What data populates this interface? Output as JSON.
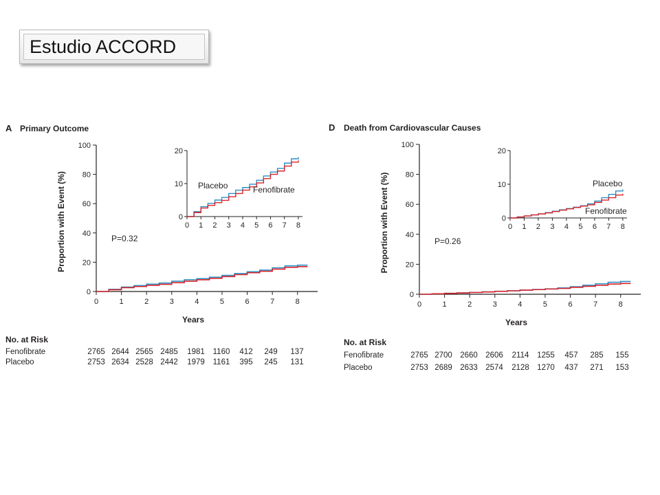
{
  "slide_title": "Estudio ACCORD",
  "colors": {
    "placebo": "#2f8fc4",
    "fenofibrate": "#d8242a",
    "axis": "#231f20"
  },
  "risk_header": "No. at Risk",
  "chart_data": [
    {
      "type": "line",
      "panel_letter": "A",
      "title": "Primary Outcome",
      "xlabel": "Years",
      "ylabel": "Proportion with Event (%)",
      "xlim": [
        0,
        8.8
      ],
      "ylim": [
        0,
        100
      ],
      "xticks": [
        0,
        1,
        2,
        3,
        4,
        5,
        6,
        7,
        8
      ],
      "yticks": [
        0,
        20,
        40,
        60,
        80,
        100
      ],
      "p_value": "P=0.32",
      "series": [
        {
          "name": "Placebo",
          "color": "#2f8fc4",
          "x": [
            0,
            0.5,
            1,
            1.5,
            2,
            2.5,
            3,
            3.5,
            4,
            4.5,
            5,
            5.5,
            6,
            6.5,
            7,
            7.5,
            8,
            8.4
          ],
          "y": [
            0,
            1.5,
            3,
            4,
            5,
            5.8,
            7,
            8,
            8.8,
            9.8,
            11,
            12.3,
            13.5,
            14.6,
            16.2,
            17.5,
            18,
            18
          ]
        },
        {
          "name": "Fenofibrate",
          "color": "#d8242a",
          "x": [
            0,
            0.5,
            1,
            1.5,
            2,
            2.5,
            3,
            3.5,
            4,
            4.5,
            5,
            5.5,
            6,
            6.5,
            7,
            7.5,
            8,
            8.4
          ],
          "y": [
            0,
            1.2,
            2.6,
            3.4,
            4.2,
            4.9,
            6,
            7,
            8,
            9,
            10.2,
            11.5,
            12.8,
            13.8,
            15.3,
            16.5,
            17,
            17
          ]
        }
      ],
      "inset": {
        "xlim": [
          0,
          8.3
        ],
        "ylim": [
          0,
          20
        ],
        "xticks": [
          0,
          1,
          2,
          3,
          4,
          5,
          6,
          7,
          8
        ],
        "yticks": [
          0,
          10,
          20
        ],
        "labels": [
          "Placebo",
          "Fenofibrate"
        ]
      },
      "risk_table": {
        "rows": [
          {
            "label": "Fenofibrate",
            "values": [
              "2765",
              "2644",
              "2565",
              "2485",
              "1981",
              "1160",
              "412",
              "249",
              "137"
            ]
          },
          {
            "label": "Placebo",
            "values": [
              "2753",
              "2634",
              "2528",
              "2442",
              "1979",
              "1161",
              "395",
              "245",
              "131"
            ]
          }
        ]
      }
    },
    {
      "type": "line",
      "panel_letter": "D",
      "title": "Death from Cardiovascular Causes",
      "xlabel": "Years",
      "ylabel": "Proportion with Event (%)",
      "xlim": [
        0,
        8.8
      ],
      "ylim": [
        0,
        100
      ],
      "xticks": [
        0,
        1,
        2,
        3,
        4,
        5,
        6,
        7,
        8
      ],
      "yticks": [
        0,
        20,
        40,
        60,
        80,
        100
      ],
      "p_value": "P=0.26",
      "series": [
        {
          "name": "Placebo",
          "color": "#2f8fc4",
          "x": [
            0,
            0.5,
            1,
            1.5,
            2,
            2.5,
            3,
            3.5,
            4,
            4.5,
            5,
            5.5,
            6,
            6.5,
            7,
            7.5,
            8,
            8.4
          ],
          "y": [
            0,
            0.3,
            0.6,
            0.9,
            1.2,
            1.6,
            2,
            2.4,
            2.8,
            3.2,
            3.6,
            4.2,
            5,
            6,
            7,
            8,
            8.5,
            8.5
          ]
        },
        {
          "name": "Fenofibrate",
          "color": "#d8242a",
          "x": [
            0,
            0.5,
            1,
            1.5,
            2,
            2.5,
            3,
            3.5,
            4,
            4.5,
            5,
            5.5,
            6,
            6.5,
            7,
            7.5,
            8,
            8.4
          ],
          "y": [
            0,
            0.3,
            0.6,
            0.9,
            1.2,
            1.5,
            1.9,
            2.3,
            2.7,
            3.1,
            3.5,
            3.9,
            4.6,
            5.3,
            6,
            6.8,
            7.2,
            7.2
          ]
        }
      ],
      "inset": {
        "xlim": [
          0,
          8.3
        ],
        "ylim": [
          0,
          20
        ],
        "xticks": [
          0,
          1,
          2,
          3,
          4,
          5,
          6,
          7,
          8
        ],
        "yticks": [
          0,
          10,
          20
        ],
        "labels": [
          "Placebo",
          "Fenofibrate"
        ]
      },
      "risk_table": {
        "rows": [
          {
            "label": "Fenofibrate",
            "values": [
              "2765",
              "2700",
              "2660",
              "2606",
              "2114",
              "1255",
              "457",
              "285",
              "155"
            ]
          },
          {
            "label": "Placebo",
            "values": [
              "2753",
              "2689",
              "2633",
              "2574",
              "2128",
              "1270",
              "437",
              "271",
              "153"
            ]
          }
        ]
      }
    }
  ]
}
